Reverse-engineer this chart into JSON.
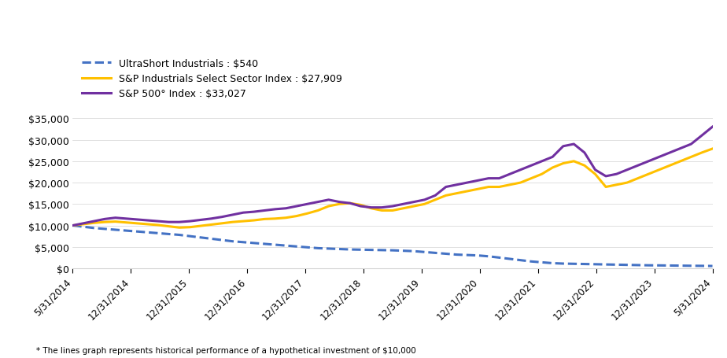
{
  "legend": [
    {
      "label": "UltraShort Industrials : $540",
      "color": "#4472C4",
      "style": "dashed",
      "linewidth": 2.2
    },
    {
      "label": "S&P Industrials Select Sector Index : $27,909",
      "color": "#FFC000",
      "style": "solid",
      "linewidth": 2.2
    },
    {
      "label": "S&P 500° Index : $33,027",
      "color": "#7030A0",
      "style": "solid",
      "linewidth": 2.2
    }
  ],
  "x_labels": [
    "5/31/2014",
    "12/31/2014",
    "12/31/2015",
    "12/31/2016",
    "12/31/2017",
    "12/31/2018",
    "12/31/2019",
    "12/31/2020",
    "12/31/2021",
    "12/31/2022",
    "12/31/2023",
    "5/31/2024"
  ],
  "ultrashort": [
    10000,
    9200,
    7800,
    5500,
    4600,
    4200,
    3000,
    1800,
    1100,
    900,
    700,
    540
  ],
  "sp_industrials": [
    10000,
    10800,
    9500,
    11500,
    15000,
    13500,
    17000,
    19000,
    25000,
    19000,
    23500,
    27909
  ],
  "sp500": [
    10000,
    11500,
    10800,
    13000,
    15500,
    14200,
    19000,
    23500,
    29000,
    21500,
    29500,
    33027
  ],
  "ultrashort_dense": [
    10000,
    9700,
    9400,
    9200,
    9000,
    8800,
    8600,
    8400,
    8200,
    8000,
    7800,
    7500,
    7200,
    6900,
    6600,
    6300,
    6100,
    5900,
    5700,
    5500,
    5300,
    5100,
    4900,
    4700,
    4600,
    4500,
    4400,
    4350,
    4300,
    4250,
    4200,
    4100,
    4000,
    3800,
    3600,
    3400,
    3200,
    3100,
    3000,
    2800,
    2500,
    2200,
    1900,
    1600,
    1400,
    1200,
    1100,
    1050,
    1000,
    950,
    900,
    850,
    800,
    750,
    700,
    680,
    650,
    620,
    590,
    570,
    540
  ],
  "sp_industrials_dense": [
    10000,
    10300,
    10600,
    10800,
    10900,
    10700,
    10500,
    10300,
    10100,
    9800,
    9500,
    9600,
    9900,
    10200,
    10500,
    10800,
    11000,
    11200,
    11500,
    11600,
    11800,
    12200,
    12800,
    13500,
    14500,
    15000,
    15200,
    14800,
    14000,
    13500,
    13500,
    14000,
    14500,
    15000,
    16000,
    17000,
    17500,
    18000,
    18500,
    19000,
    19000,
    19500,
    20000,
    21000,
    22000,
    23500,
    24500,
    25000,
    24000,
    22000,
    19000,
    19500,
    20000,
    21000,
    22000,
    23000,
    24000,
    25000,
    26000,
    27000,
    27909
  ],
  "sp500_dense": [
    10000,
    10500,
    11000,
    11500,
    11800,
    11600,
    11400,
    11200,
    11000,
    10800,
    10800,
    11000,
    11300,
    11600,
    12000,
    12500,
    13000,
    13200,
    13500,
    13800,
    14000,
    14500,
    15000,
    15500,
    16000,
    15500,
    15200,
    14500,
    14200,
    14200,
    14500,
    15000,
    15500,
    16000,
    17000,
    19000,
    19500,
    20000,
    20500,
    21000,
    21000,
    22000,
    23000,
    24000,
    25000,
    26000,
    28500,
    29000,
    27000,
    23000,
    21500,
    22000,
    23000,
    24000,
    25000,
    26000,
    27000,
    28000,
    29000,
    31000,
    33027
  ],
  "ylim": [
    0,
    36000
  ],
  "yticks": [
    0,
    5000,
    10000,
    15000,
    20000,
    25000,
    30000,
    35000
  ],
  "footnote": "* The lines graph represents historical performance of a hypothetical investment of $10,000",
  "background_color": "#ffffff"
}
